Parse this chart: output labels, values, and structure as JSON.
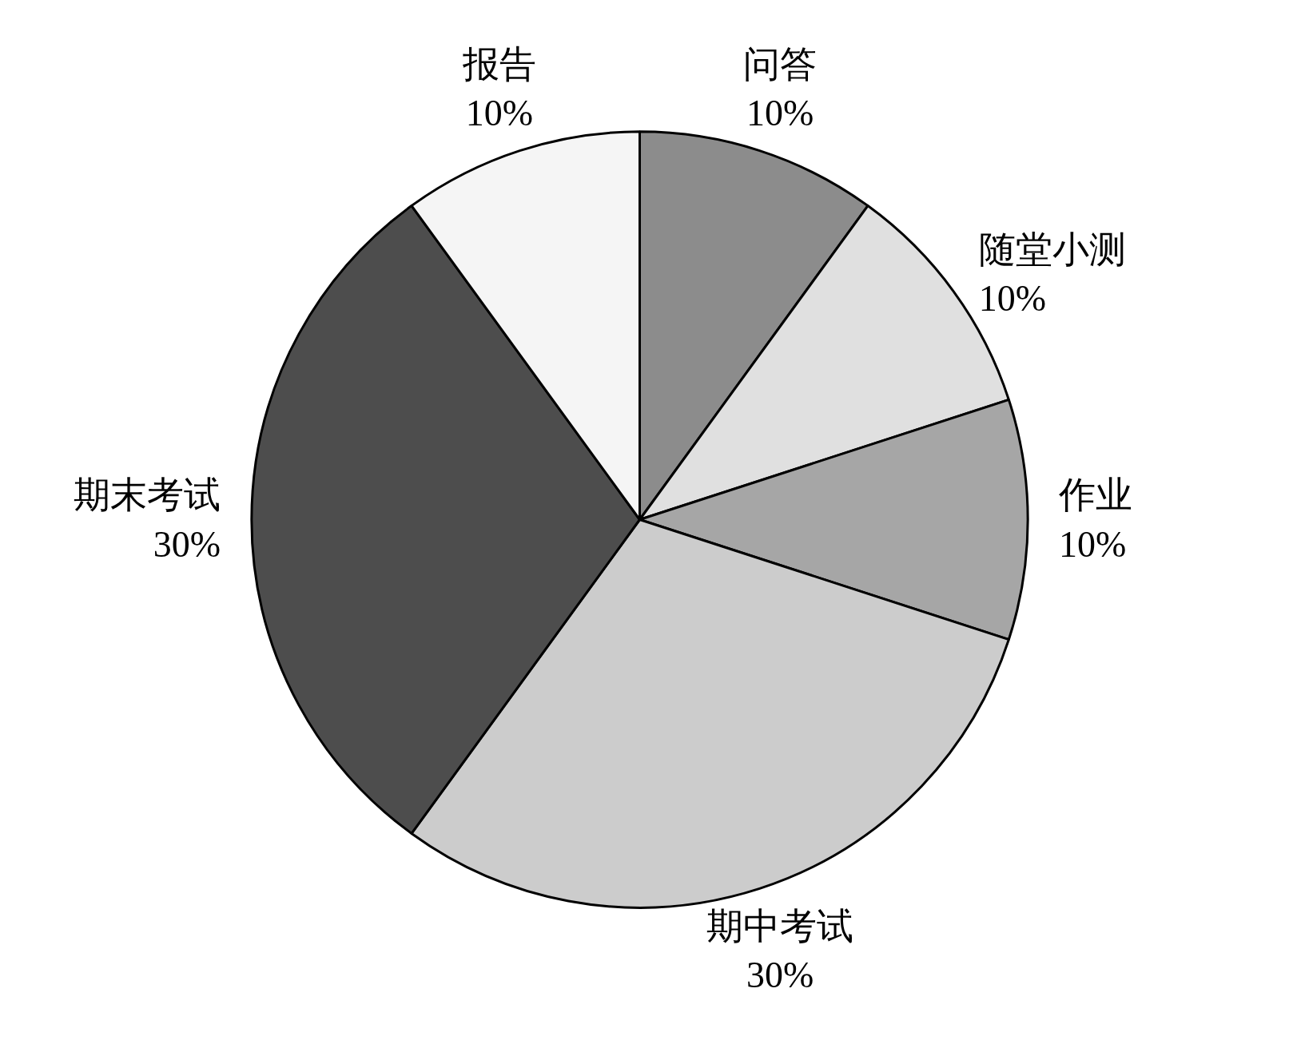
{
  "chart_data": {
    "type": "pie",
    "categories": [
      "问答",
      "随堂小测",
      "作业",
      "期中考试",
      "期末考试",
      "报告"
    ],
    "values": [
      10,
      10,
      10,
      30,
      30,
      10
    ],
    "value_labels": [
      "10%",
      "10%",
      "10%",
      "30%",
      "30%",
      "10%"
    ],
    "colors": [
      "#8c8c8c",
      "#e0e0e0",
      "#a6a6a6",
      "#cccccc",
      "#4d4d4d",
      "#f5f5f5"
    ]
  }
}
